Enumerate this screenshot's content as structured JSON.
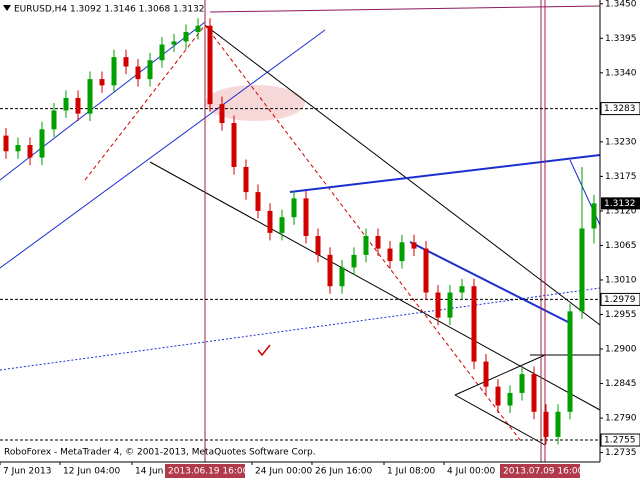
{
  "chart_data": {
    "type": "candlestick",
    "title": "EURUSD,H4 1.3092 1.3146 1.3068 1.3132",
    "footer": "RoboForex - MetaTrader 4, © 2001-2013, MetaQuotes Software Corp.",
    "categories": [
      "7 Jun 2013",
      null,
      null,
      null,
      null,
      "12 Jun 04:00",
      null,
      null,
      null,
      null,
      null,
      "14 Jun 2",
      null,
      null,
      null,
      null,
      null,
      null,
      null,
      null,
      null,
      "24 Jun 00:00",
      null,
      null,
      null,
      null,
      "26 Jun 16:00",
      null,
      null,
      null,
      null,
      null,
      "1 Jul 08:00",
      null,
      null,
      null,
      null,
      "4 Jul 00:00",
      null,
      null,
      null,
      null,
      null,
      null,
      null,
      null,
      null,
      null,
      null,
      null
    ],
    "separator_labels": [
      "2013.06.19 16:00",
      "2013.07.09 16:00"
    ],
    "open": [
      1.324,
      1.3215,
      1.3225,
      1.3205,
      1.325,
      1.328,
      1.33,
      1.3275,
      1.333,
      1.332,
      1.3365,
      1.335,
      1.333,
      1.336,
      1.3385,
      1.339,
      1.3405,
      1.3415,
      1.329,
      1.326,
      1.319,
      1.315,
      1.312,
      1.3085,
      1.311,
      1.314,
      1.308,
      1.305,
      1.3,
      1.303,
      1.305,
      1.308,
      1.306,
      1.304,
      1.307,
      1.306,
      1.299,
      1.295,
      1.299,
      1.3,
      1.288,
      1.284,
      1.281,
      1.283,
      1.286,
      1.28,
      1.276,
      1.28,
      1.296,
      1.3092
    ],
    "high": [
      1.3252,
      1.3237,
      1.3237,
      1.3262,
      1.3292,
      1.3312,
      1.3312,
      1.3342,
      1.3342,
      1.3377,
      1.3377,
      1.3362,
      1.3372,
      1.3397,
      1.3402,
      1.3417,
      1.3427,
      1.3427,
      1.3302,
      1.3272,
      1.3202,
      1.3162,
      1.3132,
      1.3122,
      1.3152,
      1.3152,
      1.3092,
      1.3062,
      1.3042,
      1.3062,
      1.3092,
      1.3092,
      1.3072,
      1.3082,
      1.3082,
      1.3072,
      1.3002,
      1.3002,
      1.3012,
      1.3012,
      1.2892,
      1.2852,
      1.2842,
      1.2872,
      1.2872,
      1.2812,
      1.2812,
      1.2972,
      1.319,
      1.3146
    ],
    "low": [
      1.3203,
      1.3203,
      1.3193,
      1.3193,
      1.3238,
      1.3268,
      1.3263,
      1.3263,
      1.3308,
      1.3308,
      1.3338,
      1.3318,
      1.3318,
      1.3348,
      1.3373,
      1.3378,
      1.3393,
      1.3278,
      1.3248,
      1.3178,
      1.3138,
      1.3108,
      1.3073,
      1.3073,
      1.3098,
      1.3068,
      1.3038,
      1.2988,
      1.2988,
      1.3018,
      1.3038,
      1.3048,
      1.3028,
      1.3028,
      1.3048,
      1.2978,
      1.2938,
      1.2938,
      1.2978,
      1.2868,
      1.2828,
      1.2798,
      1.2798,
      1.2818,
      1.2788,
      1.2748,
      1.2748,
      1.2788,
      1.2948,
      1.3068
    ],
    "close": [
      1.3215,
      1.3225,
      1.3205,
      1.325,
      1.328,
      1.33,
      1.3275,
      1.333,
      1.332,
      1.3365,
      1.335,
      1.333,
      1.336,
      1.3385,
      1.339,
      1.3405,
      1.3415,
      1.329,
      1.326,
      1.319,
      1.315,
      1.312,
      1.3085,
      1.311,
      1.314,
      1.308,
      1.305,
      1.3,
      1.303,
      1.305,
      1.308,
      1.306,
      1.304,
      1.307,
      1.306,
      1.299,
      1.295,
      1.299,
      1.3,
      1.288,
      1.284,
      1.281,
      1.283,
      1.286,
      1.28,
      1.276,
      1.28,
      1.296,
      1.3092,
      1.3132
    ],
    "up_color": "#00a000",
    "down_color": "#d00000",
    "ylim": [
      1.272,
      1.3456
    ],
    "yticks": [
      {
        "value": 1.345,
        "label": "1.3450"
      },
      1.3395,
      {
        "value": 1.334,
        "label": "1.3340"
      },
      {
        "value": 1.323,
        "label": "1.3230"
      },
      1.3175,
      {
        "value": 1.312,
        "label": "1.3120"
      },
      1.3065,
      {
        "value": 1.301,
        "label": "1.3010"
      },
      1.2955,
      {
        "value": 1.29,
        "label": "1.2900"
      },
      1.2845,
      {
        "value": 1.279,
        "label": "1.2790"
      },
      1.2735
    ],
    "levels": [
      1.3283,
      1.2979,
      1.2755
    ],
    "bid": 1.3132,
    "grid": false
  }
}
